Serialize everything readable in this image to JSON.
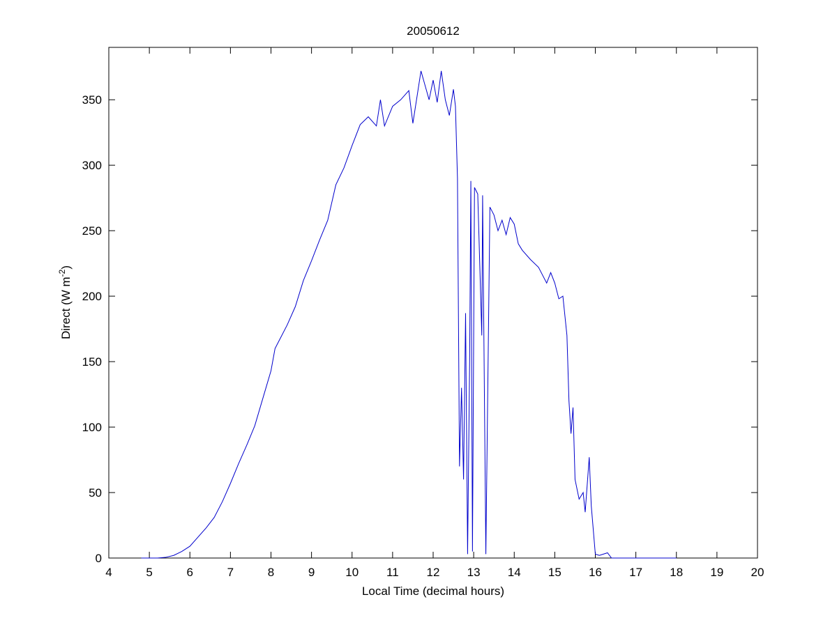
{
  "chart_data": {
    "type": "line",
    "title": "20050612",
    "xlabel": "Local Time (decimal hours)",
    "ylabel": {
      "text": "Direct (W m",
      "superscript": "-2",
      "suffix": ")"
    },
    "xlim": [
      4,
      20
    ],
    "ylim": [
      0,
      390
    ],
    "xticks": [
      4,
      5,
      6,
      7,
      8,
      9,
      10,
      11,
      12,
      13,
      14,
      15,
      16,
      17,
      18,
      19,
      20
    ],
    "yticks": [
      0,
      50,
      100,
      150,
      200,
      250,
      300,
      350
    ],
    "x": [
      4.8,
      5.0,
      5.2,
      5.4,
      5.6,
      5.8,
      6.0,
      6.2,
      6.4,
      6.6,
      6.8,
      7.0,
      7.2,
      7.4,
      7.6,
      7.8,
      8.0,
      8.1,
      8.2,
      8.4,
      8.6,
      8.8,
      9.0,
      9.2,
      9.4,
      9.6,
      9.8,
      10.0,
      10.2,
      10.4,
      10.6,
      10.7,
      10.8,
      11.0,
      11.2,
      11.4,
      11.5,
      11.7,
      11.9,
      12.0,
      12.1,
      12.2,
      12.3,
      12.4,
      12.5,
      12.55,
      12.6,
      12.65,
      12.7,
      12.75,
      12.8,
      12.85,
      12.9,
      12.93,
      12.97,
      13.02,
      13.1,
      13.2,
      13.22,
      13.3,
      13.4,
      13.5,
      13.6,
      13.7,
      13.8,
      13.9,
      14.0,
      14.1,
      14.2,
      14.4,
      14.6,
      14.8,
      14.9,
      15.0,
      15.1,
      15.2,
      15.3,
      15.35,
      15.4,
      15.45,
      15.5,
      15.6,
      15.7,
      15.75,
      15.85,
      15.9,
      16.0,
      16.1,
      16.3,
      16.4,
      17.0,
      18.0
    ],
    "series": [
      {
        "name": "Direct",
        "color": "#0000cc",
        "values": [
          0,
          0,
          0,
          0.5,
          2,
          5,
          9,
          16,
          23,
          31,
          43,
          57,
          72,
          86,
          101,
          122,
          143,
          160,
          166,
          178,
          192,
          212,
          227,
          243,
          258,
          285,
          298,
          315,
          331,
          337,
          330,
          350,
          330,
          345,
          350,
          357,
          332,
          372,
          350,
          365,
          348,
          372,
          350,
          338,
          358,
          345,
          290,
          70,
          130,
          60,
          187,
          3,
          150,
          288,
          5,
          283,
          278,
          170,
          277,
          3,
          268,
          262,
          250,
          258,
          247,
          260,
          255,
          240,
          235,
          228,
          222,
          210,
          218,
          210,
          198,
          200,
          170,
          120,
          95,
          115,
          60,
          45,
          50,
          35,
          77,
          40,
          3,
          2,
          4,
          0,
          0,
          0
        ]
      }
    ]
  }
}
